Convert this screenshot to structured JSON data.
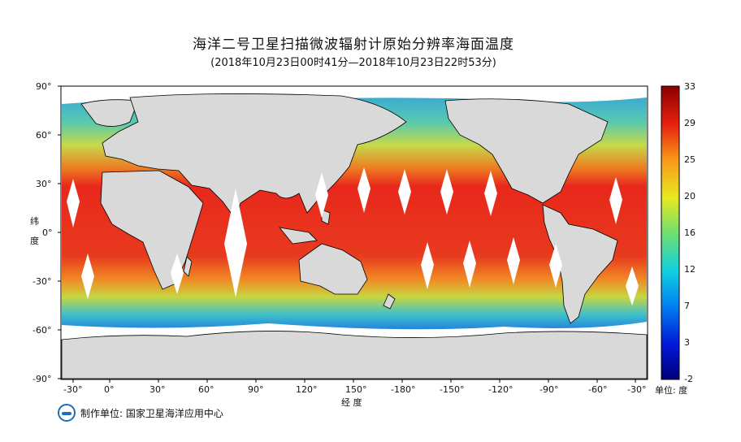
{
  "title": "海洋二号卫星扫描微波辐射计原始分辨率海面温度",
  "subtitle": "(2018年10月23日00时41分—2018年10月23日22时53分)",
  "y_axis_label": [
    "纬",
    "度"
  ],
  "x_axis_label": "经    度",
  "lat_ticks": [
    "90°",
    "60°",
    "30°",
    "0°",
    "-30°",
    "-60°",
    "-90°"
  ],
  "lon_ticks": [
    "-30°",
    "0°",
    "30°",
    "60°",
    "90°",
    "120°",
    "150°",
    "-180°",
    "-150°",
    "-120°",
    "-90°",
    "-60°",
    "-30°"
  ],
  "colorbar_ticks": [
    "33",
    "29",
    "25",
    "20",
    "16",
    "12",
    "7",
    "3",
    "-2"
  ],
  "colorbar_unit": "单位: 度",
  "producer": "制作单位: 国家卫星海洋应用中心",
  "colors": {
    "land": "#d9d9d9",
    "ocean_warm": "#e8281c",
    "ocean_cold": "#1b3fd1"
  }
}
